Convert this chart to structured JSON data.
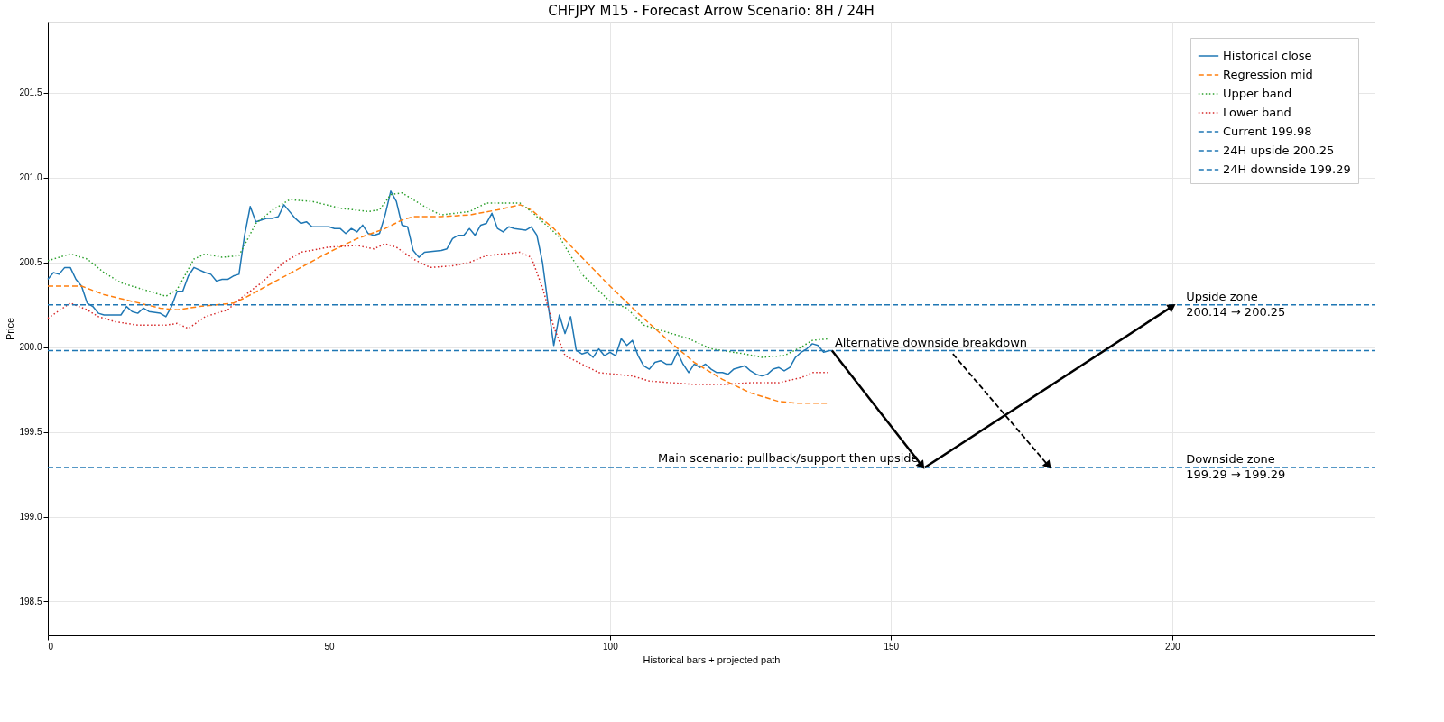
{
  "chart_data": {
    "type": "line",
    "title": "CHFJPY M15 - Forecast Arrow Scenario: 8H / 24H",
    "xlabel": "Historical bars + projected path",
    "ylabel": "Price",
    "xlim": [
      0,
      236
    ],
    "ylim": [
      198.3,
      201.92
    ],
    "xticks": [
      0,
      50,
      100,
      150,
      200
    ],
    "yticks": [
      198.5,
      {
        "value": 199,
        "label": "199.0"
      },
      199.5,
      {
        "value": 200,
        "label": "200.0"
      },
      200.5,
      {
        "value": 201,
        "label": "201.0"
      },
      201.5
    ],
    "grid": true,
    "legend": "top right",
    "series": [
      {
        "name": "Historical close",
        "color": "#1f77b4",
        "line_style": "solid",
        "x": [
          0,
          1,
          2,
          3,
          4,
          5,
          6,
          7,
          8,
          9,
          10,
          12,
          13,
          14,
          15,
          16,
          17,
          18,
          20,
          21,
          22,
          23,
          24,
          25,
          26,
          28,
          29,
          30,
          31,
          32,
          33,
          34,
          35,
          36,
          37,
          38,
          39,
          40,
          41,
          42,
          43,
          44,
          45,
          46,
          47,
          48,
          49,
          50,
          51,
          52,
          53,
          54,
          55,
          56,
          57,
          58,
          59,
          60,
          61,
          62,
          63,
          64,
          65,
          66,
          67,
          70,
          71,
          72,
          73,
          74,
          75,
          76,
          77,
          78,
          79,
          80,
          81,
          82,
          83,
          85,
          86,
          87,
          88,
          89,
          90,
          91,
          92,
          93,
          94,
          95,
          96,
          97,
          98,
          99,
          100,
          101,
          102,
          103,
          104,
          105,
          106,
          107,
          108,
          109,
          110,
          111,
          112,
          113,
          114,
          115,
          116,
          117,
          118,
          119,
          120,
          121,
          122,
          123,
          124,
          125,
          126,
          127,
          128,
          129,
          130,
          131,
          132,
          133,
          134,
          135,
          136,
          137,
          138,
          139
        ],
        "values": [
          200.4,
          200.44,
          200.43,
          200.47,
          200.47,
          200.4,
          200.36,
          200.26,
          200.24,
          200.2,
          200.19,
          200.19,
          200.19,
          200.24,
          200.21,
          200.2,
          200.23,
          200.21,
          200.2,
          200.18,
          200.24,
          200.33,
          200.33,
          200.42,
          200.47,
          200.44,
          200.43,
          200.39,
          200.4,
          200.4,
          200.42,
          200.43,
          200.66,
          200.83,
          200.74,
          200.75,
          200.76,
          200.76,
          200.77,
          200.84,
          200.8,
          200.76,
          200.73,
          200.74,
          200.71,
          200.71,
          200.71,
          200.71,
          200.7,
          200.7,
          200.67,
          200.7,
          200.68,
          200.72,
          200.67,
          200.66,
          200.67,
          200.78,
          200.92,
          200.86,
          200.72,
          200.71,
          200.57,
          200.53,
          200.56,
          200.57,
          200.58,
          200.64,
          200.66,
          200.66,
          200.7,
          200.66,
          200.72,
          200.73,
          200.79,
          200.7,
          200.68,
          200.71,
          200.7,
          200.69,
          200.71,
          200.66,
          200.5,
          200.25,
          200.01,
          200.19,
          200.08,
          200.18,
          199.98,
          199.96,
          199.97,
          199.94,
          199.99,
          199.95,
          199.97,
          199.95,
          200.05,
          200.01,
          200.04,
          199.95,
          199.89,
          199.87,
          199.91,
          199.92,
          199.9,
          199.9,
          199.97,
          199.9,
          199.85,
          199.9,
          199.88,
          199.9,
          199.87,
          199.85,
          199.85,
          199.84,
          199.87,
          199.88,
          199.89,
          199.86,
          199.84,
          199.83,
          199.84,
          199.87,
          199.88,
          199.86,
          199.88,
          199.94,
          199.97,
          199.99,
          200.02,
          200.01,
          199.97,
          199.98
        ]
      },
      {
        "name": "Regression mid",
        "color": "#ff7f0e",
        "line_style": "dashed",
        "x": [
          0,
          6,
          10,
          15,
          20,
          23,
          27,
          33,
          35,
          40,
          45,
          50,
          55,
          60,
          63,
          65,
          70,
          75,
          80,
          84,
          86,
          90,
          95,
          100,
          105,
          110,
          115,
          120,
          125,
          130,
          133,
          139
        ],
        "values": [
          200.36,
          200.36,
          200.31,
          200.27,
          200.23,
          200.22,
          200.24,
          200.26,
          200.29,
          200.38,
          200.47,
          200.56,
          200.64,
          200.7,
          200.75,
          200.77,
          200.77,
          200.78,
          200.81,
          200.84,
          200.81,
          200.7,
          200.53,
          200.36,
          200.2,
          200.05,
          199.91,
          199.81,
          199.73,
          199.68,
          199.67,
          199.67
        ]
      },
      {
        "name": "Upper band",
        "color": "#2ca02c",
        "line_style": "dotted",
        "x": [
          0,
          4,
          7,
          10,
          13,
          17,
          21,
          23,
          26,
          28,
          31,
          34,
          37,
          40,
          43,
          47,
          52,
          57,
          59,
          61,
          63,
          65,
          68,
          70,
          75,
          78,
          84,
          86,
          91,
          95,
          100,
          103,
          106,
          110,
          114,
          118,
          124,
          127,
          131,
          134,
          136,
          139
        ],
        "values": [
          200.51,
          200.55,
          200.52,
          200.44,
          200.38,
          200.34,
          200.3,
          200.34,
          200.52,
          200.55,
          200.53,
          200.54,
          200.73,
          200.81,
          200.87,
          200.86,
          200.82,
          200.8,
          200.81,
          200.9,
          200.91,
          200.87,
          200.81,
          200.78,
          200.8,
          200.85,
          200.85,
          200.8,
          200.65,
          200.43,
          200.27,
          200.23,
          200.13,
          200.09,
          200.05,
          199.99,
          199.96,
          199.94,
          199.95,
          200.0,
          200.04,
          200.05
        ]
      },
      {
        "name": "Lower band",
        "color": "#d62728",
        "line_style": "dotted",
        "x": [
          0,
          4,
          7,
          9,
          12,
          16,
          21,
          23,
          25,
          28,
          32,
          34,
          38,
          42,
          45,
          50,
          55,
          58,
          60,
          62,
          65,
          68,
          72,
          75,
          78,
          84,
          86,
          88,
          90,
          92,
          95,
          98,
          101,
          104,
          107,
          111,
          115,
          120,
          125,
          130,
          134,
          136,
          139
        ],
        "values": [
          200.17,
          200.26,
          200.22,
          200.18,
          200.15,
          200.13,
          200.13,
          200.14,
          200.11,
          200.18,
          200.22,
          200.28,
          200.38,
          200.5,
          200.56,
          200.59,
          200.6,
          200.58,
          200.61,
          200.59,
          200.52,
          200.47,
          200.48,
          200.5,
          200.54,
          200.56,
          200.53,
          200.35,
          200.12,
          199.95,
          199.9,
          199.85,
          199.84,
          199.83,
          199.8,
          199.79,
          199.78,
          199.78,
          199.79,
          199.79,
          199.82,
          199.85,
          199.85
        ]
      },
      {
        "type": "line",
        "color": "#000000",
        "line_style": "solid",
        "marker": "triangle",
        "x": [
          139.5,
          155.5
        ],
        "values": [
          199.98,
          199.3
        ]
      },
      {
        "type": "line",
        "color": "#000000",
        "line_style": "solid",
        "marker": "triangle",
        "x": [
          156,
          200
        ],
        "values": [
          199.29,
          200.24
        ]
      },
      {
        "type": "line",
        "color": "#000000",
        "line_style": "dashed",
        "marker": "triangle",
        "x": [
          161,
          178
        ],
        "values": [
          199.96,
          199.3
        ]
      }
    ],
    "ref_lines": [
      {
        "axis": "y",
        "value": 199.98,
        "label": "Current 199.98",
        "color": "#1f77b4",
        "line_style": "dashed"
      },
      {
        "axis": "y",
        "value": 200.25,
        "label": "24H upside 200.25",
        "color": "#1f77b4",
        "line_style": "dashed"
      },
      {
        "axis": "y",
        "value": 199.29,
        "label": "24H downside 199.29",
        "color": "#1f77b4",
        "line_style": "dashed"
      }
    ],
    "annotations": [
      {
        "text": "Alternative downside breakdown",
        "x": 139.5,
        "y": 199.98
      },
      {
        "text": "Main scenario: pullback/support then upside",
        "x": 155.5,
        "y": 199.29
      },
      {
        "text": "Upside zone\n200.14 → 200.25",
        "x": 202,
        "y": 200.25
      },
      {
        "text": "Downside zone\n199.29 → 199.29",
        "x": 202,
        "y": 199.29
      }
    ]
  }
}
